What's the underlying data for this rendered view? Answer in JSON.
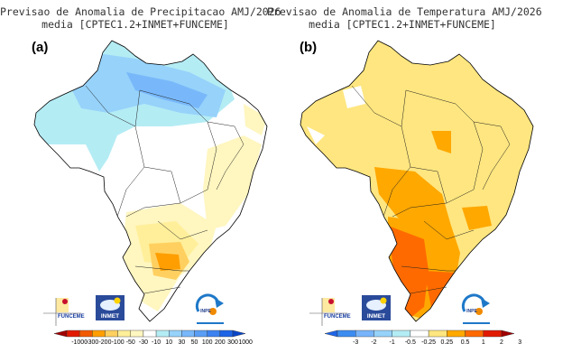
{
  "panels": [
    {
      "label": "(a)",
      "title_line1": "Previsao de Anomalia de Precipitacao AMJ/2026",
      "title_line2": "media [CPTEC1.2+INMET+FUNCEME]",
      "colorbar": {
        "labels": [
          "-1000",
          "-300",
          "-200",
          "-100",
          "-50",
          "-30",
          "-10",
          "10",
          "30",
          "50",
          "100",
          "200",
          "300",
          "1000"
        ],
        "colors": [
          "#a00000",
          "#e01a00",
          "#f25a00",
          "#ff9e00",
          "#ffd060",
          "#ffef9a",
          "#fff6c0",
          "#ffffff",
          "#b4ecf4",
          "#96d2fa",
          "#78b8fa",
          "#5a9ef5",
          "#3c82f0",
          "#1e64e6",
          "#0a46c8"
        ]
      }
    },
    {
      "label": "(b)",
      "title_line1": "Previsao de Anomalia de Temperatura AMJ/2026",
      "title_line2": "media [CPTEC1.2+INMET+FUNCEME]",
      "colorbar": {
        "labels": [
          "-3",
          "-2",
          "-1",
          "-0.5",
          "-0.25",
          "0.25",
          "0.5",
          "1",
          "2",
          "3"
        ],
        "colors": [
          "#1e64e6",
          "#3c8cf0",
          "#78b4fa",
          "#96d2fa",
          "#b4ecf4",
          "#ffffff",
          "#ffe680",
          "#ffa800",
          "#ff6a00",
          "#e01a00",
          "#a00000"
        ]
      }
    }
  ],
  "logos": {
    "funceme": "FUNCEME",
    "inmet": "INMET",
    "inpe": "INPE"
  }
}
